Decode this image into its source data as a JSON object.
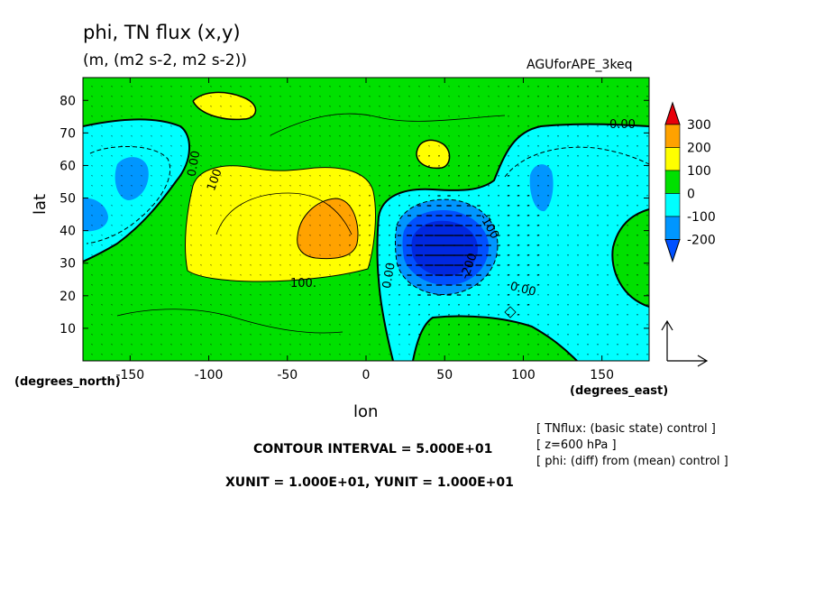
{
  "chart_data": {
    "type": "contour",
    "title": "phi, TN flux (x,y)",
    "subtitle": "(m, (m2 s-2, m2 s-2))",
    "run_name": "AGUforAPE_3keq",
    "xlabel": "lon",
    "ylabel": "lat",
    "x_unit_label": "(degrees_east)",
    "y_unit_label": "(degrees_north)",
    "xlim": [
      -180,
      180
    ],
    "ylim": [
      0,
      87
    ],
    "x_ticks": [
      -150,
      -100,
      -50,
      0,
      50,
      100,
      150
    ],
    "x_tick_labels": [
      "-150",
      "-100",
      "-50",
      "0",
      "50",
      "100",
      "150"
    ],
    "y_ticks": [
      10,
      20,
      30,
      40,
      50,
      60,
      70,
      80
    ],
    "y_tick_labels": [
      "10",
      "20",
      "30",
      "40",
      "50",
      "60",
      "70",
      "80"
    ],
    "colorbar": {
      "levels": [
        -200,
        -100,
        0,
        100,
        200,
        300
      ],
      "labels": [
        "300",
        "200",
        "100",
        "0",
        "-100",
        "-200"
      ],
      "colors": [
        "#e8000b",
        "#ffa200",
        "#ffff00",
        "#00e000",
        "#00ffff",
        "#0096ff",
        "#0050ff"
      ]
    },
    "fill_colors": {
      "positive_300": "#ffa200",
      "positive_100": "#ffff00",
      "zero_band": "#00e000",
      "negative_100": "#00ffff",
      "negative_200": "#0096ff",
      "negative_300": "#0050ff",
      "negative_400": "#0028e0"
    },
    "contour_labels": [
      "0.00",
      "0.00",
      "0.00",
      "0.00",
      "100",
      "100.",
      "-100",
      "-200"
    ],
    "contour_interval_text": "CONTOUR INTERVAL = 5.000E+01",
    "vector_units_text": "XUNIT = 1.000E+01, YUNIT = 1.000E+01",
    "notes": [
      "[ TNflux: (basic state) control ]",
      "[ z=600 hPa ]",
      "[ phi: (diff) from (mean) control ]"
    ]
  }
}
